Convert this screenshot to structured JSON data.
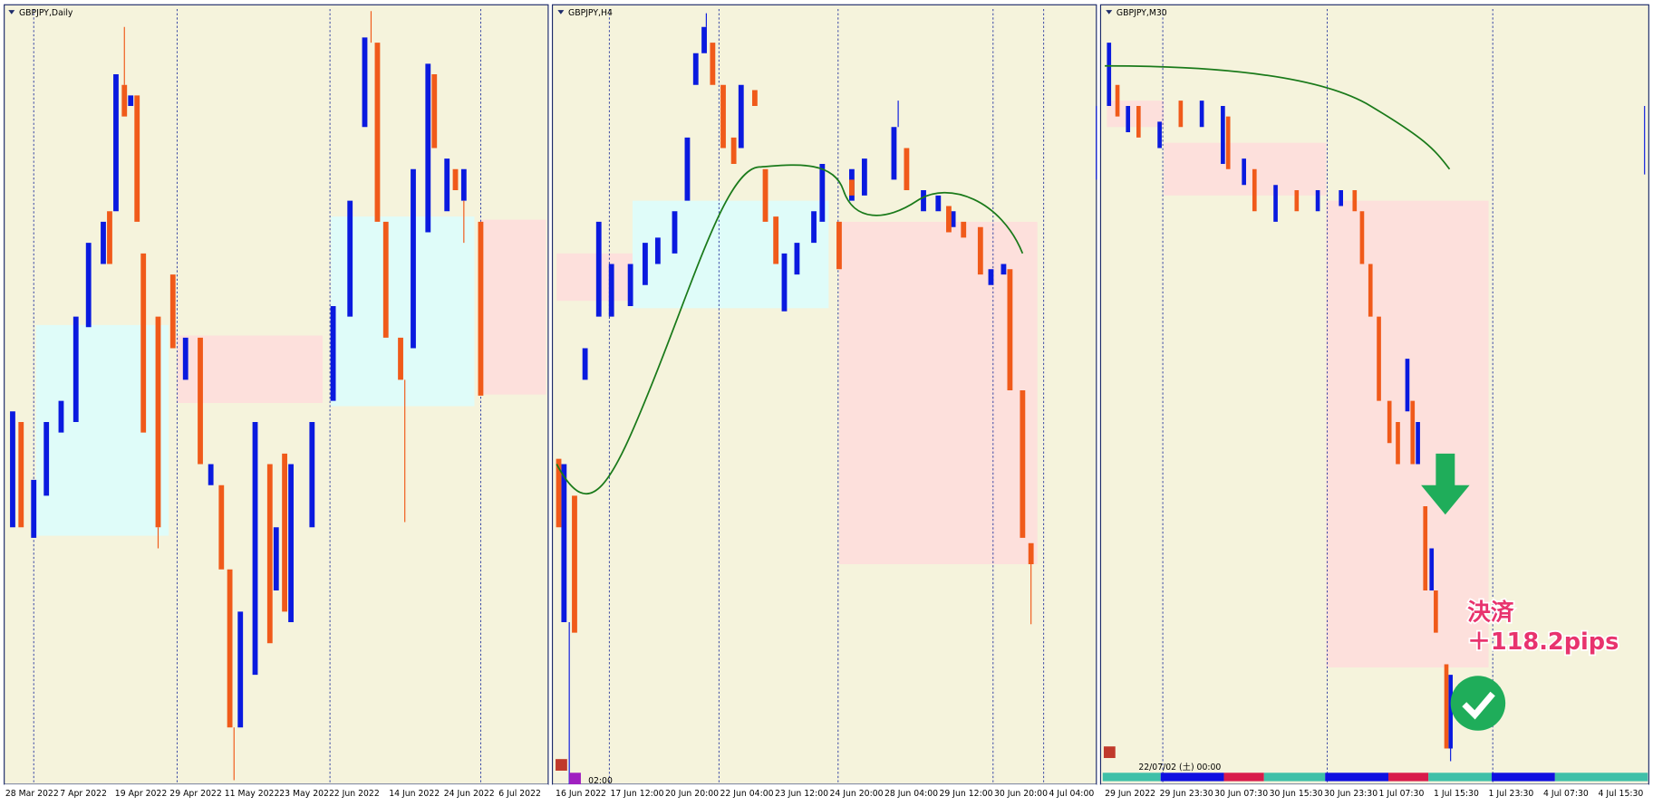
{
  "panels": [
    {
      "title": "GBPJPY,Daily",
      "x_labels": [
        "28 Mar 2022",
        "7 Apr 2022",
        "19 Apr 2022",
        "29 Apr 2022",
        "11 May 2022",
        "23 May 2022",
        "2 Jun 2022",
        "14 Jun 2022",
        "24 Jun 2022",
        "6 Jul 2022"
      ]
    },
    {
      "title": "GBPJPY,H4",
      "x_labels": [
        "16 Jun 2022",
        "17 Jun 12:00",
        "20 Jun 20:00",
        "22 Jun 04:00",
        "23 Jun 12:00",
        "24 Jun 20:00",
        "28 Jun 04:00",
        "29 Jun 12:00",
        "30 Jun 20:00",
        "4 Jul 04:00"
      ],
      "time_label": "02:00"
    },
    {
      "title": "GBPJPY,M30",
      "x_labels": [
        "29 Jun 2022",
        "29 Jun 23:30",
        "30 Jun 07:30",
        "30 Jun 15:30",
        "30 Jun 23:30",
        "1 Jul 07:30",
        "1 Jul 15:30",
        "1 Jul 23:30",
        "4 Jul 07:30",
        "4 Jul 15:30"
      ],
      "time_label": "22/07/02 (土) 00:00"
    }
  ],
  "annotation": {
    "line1": "決済",
    "line2": "＋118.2pips"
  }
}
